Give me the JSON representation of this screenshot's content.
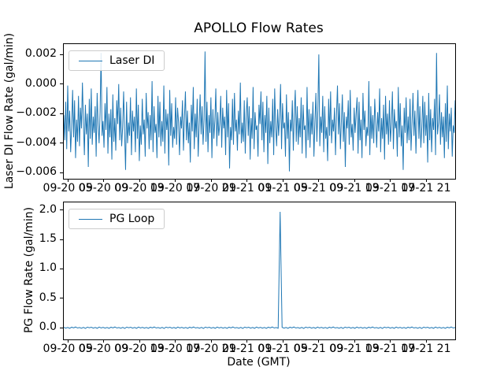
{
  "title": "APOLLO Flow Rates",
  "colors": {
    "series": "#1f77b4",
    "axes": "#000000",
    "legend_border": "#cccccc",
    "background": "#ffffff"
  },
  "x_axis": {
    "label": "Date (GMT)",
    "tick_labels": [
      "09-20 05",
      "09-20 09",
      "09-20 13",
      "09-20 17",
      "09-20 21",
      "09-21 01",
      "09-21 05",
      "09-21 09",
      "09-21 13",
      "09-21 17",
      "09-21 21"
    ],
    "first_tick_frac": 0.0101,
    "tick_step_frac": 0.09155
  },
  "chart_data": [
    {
      "type": "line",
      "name": "Laser DI",
      "legend": "Laser DI",
      "ylabel": "Laser DI Flow Rate (gal/min)",
      "ylim": [
        -0.0064,
        0.0027
      ],
      "yticks": [
        {
          "v": 0.002,
          "label": "0.002"
        },
        {
          "v": 0.0,
          "label": "0.000"
        },
        {
          "v": -0.002,
          "label": "−0.002"
        },
        {
          "v": -0.004,
          "label": "−0.004"
        },
        {
          "v": -0.006,
          "label": "−0.006"
        }
      ],
      "unit_scale": 0.001,
      "values": [
        -2.1,
        -3.8,
        -1.2,
        -4.4,
        -0.1,
        -3.2,
        -1.8,
        -4.6,
        -2.9,
        -0.4,
        -3.6,
        -1.1,
        -5.0,
        -2.4,
        -3.9,
        -0.8,
        -4.2,
        -1.6,
        -3.0,
        0.1,
        -2.6,
        -4.8,
        -1.4,
        -3.4,
        -2.0,
        -5.6,
        -1.0,
        -3.7,
        -0.3,
        -4.1,
        -2.2,
        -3.3,
        -1.5,
        -4.9,
        -0.6,
        -2.8,
        -4.0,
        -1.9,
        2.1,
        -3.5,
        -2.5,
        -4.3,
        -1.3,
        -3.1,
        -0.2,
        -4.7,
        -2.0,
        -3.6,
        -1.7,
        -5.1,
        -0.7,
        -3.9,
        -2.3,
        -4.5,
        -1.1,
        -2.7,
        0.0,
        -3.8,
        -1.6,
        -4.2,
        -2.9,
        -0.5,
        -3.3,
        -5.8,
        -1.2,
        -4.0,
        -2.6,
        -3.5,
        -0.9,
        -4.8,
        -1.8,
        -3.2,
        -2.2,
        -4.6,
        -0.3,
        -3.7,
        -1.4,
        -5.2,
        -2.8,
        -4.1,
        -1.0,
        -3.4,
        -2.4,
        -4.9,
        -0.6,
        -3.0,
        -1.9,
        -4.4,
        -2.1,
        -3.8,
        0.2,
        -4.6,
        -1.5,
        -3.3,
        -2.7,
        -5.0,
        -0.8,
        -3.6,
        -1.2,
        -4.2,
        -2.5,
        -3.9,
        -0.1,
        -4.7,
        -1.7,
        -3.1,
        -2.0,
        -5.5,
        -0.4,
        -3.5,
        -1.3,
        -4.3,
        -2.9,
        -3.7,
        -0.9,
        -4.1,
        -1.6,
        -2.6,
        -4.8,
        -2.2,
        -3.0,
        -1.1,
        -4.5,
        -2.3,
        -0.5,
        -3.8,
        -1.8,
        -4.0,
        -2.6,
        -5.3,
        -1.4,
        -3.2,
        -0.2,
        -4.4,
        -2.0,
        -3.6,
        -1.0,
        -4.9,
        -2.8,
        -0.7,
        -3.4,
        -1.5,
        -4.1,
        -2.4,
        2.2,
        -3.9,
        -1.2,
        -4.6,
        -2.1,
        -3.3,
        -0.9,
        -5.0,
        -1.7,
        -3.7,
        -2.5,
        -0.3,
        -4.2,
        -1.9,
        -3.5,
        -2.7,
        -0.8,
        -4.3,
        -1.6,
        -3.0,
        -2.2,
        -4.8,
        -0.4,
        -3.6,
        -1.3,
        -5.7,
        -2.9,
        -3.8,
        -1.0,
        -4.1,
        -0.6,
        -3.2,
        -2.4,
        -4.5,
        -1.8,
        -3.4,
        0.1,
        -4.0,
        -2.6,
        -3.9,
        -1.1,
        -4.7,
        -2.0,
        -0.9,
        -3.5,
        -1.5,
        -5.1,
        -2.3,
        -3.7,
        -0.2,
        -4.4,
        -1.9,
        -3.1,
        -2.8,
        -4.9,
        -1.4,
        -2.7,
        -0.5,
        -3.8,
        -1.2,
        -4.6,
        -2.1,
        -3.3,
        -0.8,
        -5.4,
        -1.6,
        -4.0,
        -2.5,
        -3.6,
        -1.0,
        -4.8,
        -0.3,
        -2.9,
        -4.2,
        -1.7,
        -3.5,
        -2.2,
        0.0,
        -4.4,
        -1.3,
        -3.0,
        -2.6,
        -4.9,
        -0.7,
        -3.7,
        -1.9,
        -5.9,
        -2.4,
        -3.2,
        -1.1,
        -4.5,
        -2.0,
        -0.4,
        -3.9,
        -1.5,
        -4.1,
        -2.3,
        -3.6,
        -0.9,
        -4.7,
        -1.4,
        -3.1,
        -2.8,
        -5.0,
        -0.2,
        -3.8,
        -1.7,
        -4.3,
        -2.0,
        -3.4,
        -1.2,
        -4.9,
        -2.6,
        -0.6,
        -3.9,
        -1.8,
        2.0,
        -4.2,
        -2.2,
        -3.3,
        -0.8,
        -4.6,
        -1.5,
        -3.7,
        -2.9,
        -5.2,
        -1.0,
        -3.5,
        -0.5,
        -4.0,
        -2.4,
        -3.2,
        -1.6,
        -4.8,
        -2.1,
        -0.1,
        -3.4,
        -1.3,
        -4.4,
        -2.5,
        -0.7,
        -3.9,
        -1.9,
        -5.6,
        -2.2,
        -3.0,
        -1.1,
        -4.1,
        -0.4,
        -3.6,
        -2.7,
        -4.5,
        -1.6,
        -3.3,
        -2.0,
        -0.9,
        -4.7,
        -1.2,
        -3.8,
        -2.4,
        -5.0,
        -0.6,
        -3.1,
        -1.8,
        -4.2,
        -2.9,
        -3.5,
        0.2,
        -4.8,
        -1.5,
        -3.7,
        -2.1,
        -4.0,
        -1.0,
        -2.6,
        -4.3,
        -1.9,
        -3.2,
        -0.3,
        -4.6,
        -2.3,
        -3.7,
        -1.4,
        -5.1,
        -0.8,
        -3.4,
        -2.0,
        -4.1,
        -1.1,
        -3.9,
        -2.7,
        -0.5,
        -4.4,
        -1.7,
        -3.0,
        -2.5,
        -4.9,
        -0.2,
        -3.6,
        -1.3,
        -4.2,
        -2.8,
        -5.8,
        -1.6,
        -3.3,
        -0.9,
        -4.0,
        -2.2,
        -3.8,
        -1.0,
        -4.5,
        -2.6,
        -0.6,
        -3.5,
        -1.8,
        -4.7,
        -2.4,
        -0.4,
        -3.7,
        -1.5,
        -4.3,
        -2.9,
        -0.8,
        -4.0,
        -1.2,
        -3.5,
        -2.1,
        -5.3,
        -0.6,
        -3.8,
        -1.7,
        -4.6,
        -2.3,
        -3.1,
        -1.0,
        -4.8,
        2.1,
        -3.4,
        -2.6,
        -0.7,
        -4.1,
        -1.9,
        -3.6,
        -2.2,
        -5.0,
        -1.3,
        -3.9,
        -0.1,
        -4.4,
        -2.0,
        -3.2,
        -1.6,
        -4.9,
        -2.8,
        -3.3,
        -1.1
      ]
    },
    {
      "type": "line",
      "name": "PG Loop",
      "legend": "PG Loop",
      "ylabel": "PG Flow Rate (gal/min)",
      "ylim": [
        -0.2,
        2.13
      ],
      "yticks": [
        {
          "v": 2.0,
          "label": "2.0"
        },
        {
          "v": 1.5,
          "label": "1.5"
        },
        {
          "v": 1.0,
          "label": "1.0"
        },
        {
          "v": 0.5,
          "label": "0.5"
        },
        {
          "v": 0.0,
          "label": "0.0"
        }
      ],
      "unit_scale": 1,
      "peak_value": 1.97,
      "values": [
        0.006,
        -0.009,
        0.003,
        -0.012,
        0.008,
        -0.004,
        0.011,
        -0.006,
        0.002,
        -0.01,
        0.005,
        -0.013,
        0.009,
        -0.002,
        0.007,
        -0.008,
        0.004,
        -0.011,
        0.01,
        -0.005,
        0.006,
        -0.009,
        0.003,
        -0.012,
        0.008,
        -0.004,
        0.011,
        -0.006,
        0.002,
        -0.01,
        0.005,
        -0.013,
        0.009,
        -0.002,
        0.007,
        -0.008,
        0.004,
        -0.011,
        0.01,
        -0.005,
        0.006,
        -0.009,
        0.003,
        -0.012,
        0.008,
        -0.004,
        0.011,
        -0.006,
        0.002,
        -0.01,
        0.005,
        -0.013,
        0.009,
        -0.002,
        0.007,
        -0.008,
        0.004,
        -0.011,
        0.01,
        -0.005,
        0.006,
        -0.009,
        0.003,
        -0.012,
        0.008,
        -0.004,
        0.011,
        -0.006,
        0.002,
        -0.01,
        0.005,
        -0.013,
        0.009,
        -0.002,
        0.007,
        -0.008,
        0.004,
        -0.011,
        0.01,
        -0.005,
        0.006,
        -0.009,
        0.003,
        -0.012,
        0.008,
        -0.004,
        0.011,
        -0.006,
        0.002,
        -0.01,
        0.005,
        -0.013,
        0.009,
        -0.002,
        0.007,
        -0.008,
        0.004,
        -0.011,
        0.01,
        -0.005,
        0.006,
        -0.009,
        0.003,
        -0.012,
        0.008,
        -0.004,
        0.011,
        -0.006,
        0.002,
        -0.01,
        1.97,
        0.006,
        -0.009,
        0.003,
        -0.012,
        0.008,
        -0.004,
        0.011,
        -0.006,
        0.002,
        -0.01,
        0.005,
        -0.013,
        0.009,
        -0.002,
        0.007,
        -0.008,
        0.004,
        -0.011,
        0.01,
        -0.005,
        0.006,
        -0.009,
        0.003,
        -0.012,
        0.008,
        -0.004,
        0.011,
        -0.006,
        0.002,
        -0.01,
        0.005,
        -0.013,
        0.009,
        -0.002,
        0.007,
        -0.008,
        0.004,
        -0.011,
        0.01,
        -0.005,
        0.006,
        -0.009,
        0.003,
        -0.012,
        0.008,
        -0.004,
        0.011,
        -0.006,
        0.002,
        -0.01,
        0.005,
        -0.013,
        0.009,
        -0.002,
        0.007,
        -0.008,
        0.004,
        -0.011,
        0.01,
        -0.005,
        0.006,
        -0.009,
        0.003,
        -0.012,
        0.008,
        -0.004,
        0.011,
        -0.006,
        0.002,
        -0.01,
        0.005,
        -0.013,
        0.009,
        -0.002,
        0.007,
        -0.008,
        0.004,
        -0.011,
        0.01,
        -0.005,
        0.006,
        -0.009,
        0.003,
        -0.012,
        0.008,
        -0.004,
        0.011,
        -0.006,
        0.002
      ]
    }
  ]
}
